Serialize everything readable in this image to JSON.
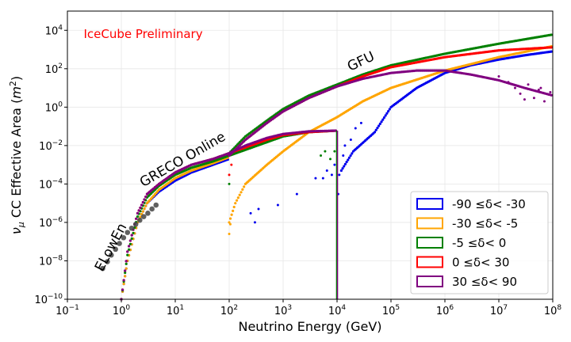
{
  "chart_data": {
    "type": "scatter",
    "xscale": "log",
    "yscale": "log",
    "xlim": [
      0.1,
      100000000
    ],
    "ylim": [
      1e-10,
      100000
    ],
    "xlabel": "Neutrino Energy (GeV)",
    "ylabel_main": "ν",
    "ylabel_sub": "μ",
    "ylabel_text": " CC Effective Area (",
    "ylabel_unit": "m",
    "ylabel_unit_exp": "2",
    "ylabel_close": ")",
    "grid": true,
    "legend_position": "lower-right",
    "x_ticks": [
      {
        "value": 0.1,
        "base": "10",
        "exp": "−1"
      },
      {
        "value": 1,
        "base": "10",
        "exp": "0"
      },
      {
        "value": 10,
        "base": "10",
        "exp": "1"
      },
      {
        "value": 100,
        "base": "10",
        "exp": "2"
      },
      {
        "value": 1000,
        "base": "10",
        "exp": "3"
      },
      {
        "value": 10000,
        "base": "10",
        "exp": "4"
      },
      {
        "value": 100000,
        "base": "10",
        "exp": "5"
      },
      {
        "value": 1000000,
        "base": "10",
        "exp": "6"
      },
      {
        "value": 10000000,
        "base": "10",
        "exp": "7"
      },
      {
        "value": 100000000,
        "base": "10",
        "exp": "8"
      }
    ],
    "y_ticks": [
      {
        "value": 1e-10,
        "base": "10",
        "exp": "−10"
      },
      {
        "value": 1e-08,
        "base": "10",
        "exp": "−8"
      },
      {
        "value": 1e-06,
        "base": "10",
        "exp": "−6"
      },
      {
        "value": 0.0001,
        "base": "10",
        "exp": "−4"
      },
      {
        "value": 0.01,
        "base": "10",
        "exp": "−2"
      },
      {
        "value": 1,
        "base": "10",
        "exp": "0"
      },
      {
        "value": 100,
        "base": "10",
        "exp": "2"
      },
      {
        "value": 10000,
        "base": "10",
        "exp": "4"
      }
    ],
    "annotations": [
      {
        "text": "IceCube Preliminary",
        "x": 0.2,
        "y": 4000,
        "angle": 0,
        "color": "#ff0000",
        "size": 15,
        "anchor": "start"
      },
      {
        "text": "GFU",
        "x": 30000,
        "y": 150,
        "angle": -25,
        "color": "#000000",
        "size": 17,
        "anchor": "middle"
      },
      {
        "text": "GRECO Online",
        "x": 15,
        "y": 0.0012,
        "angle": -30,
        "color": "#000000",
        "size": 17,
        "anchor": "middle"
      },
      {
        "text": "ELowEn",
        "x": 0.75,
        "y": 4e-08,
        "angle": -62,
        "color": "#000000",
        "size": 17,
        "anchor": "middle"
      }
    ],
    "elowen_points": {
      "color": "#444444",
      "x": [
        0.45,
        0.55,
        0.65,
        0.78,
        0.92,
        1.1,
        1.3,
        1.55,
        1.85,
        2.2,
        2.6,
        3.1,
        3.7,
        4.4
      ],
      "y": [
        4e-09,
        9e-09,
        2e-08,
        4e-08,
        8e-08,
        1.6e-07,
        3e-07,
        5e-07,
        8e-07,
        1.3e-06,
        2e-06,
        3e-06,
        5e-06,
        8e-06
      ]
    },
    "series": [
      {
        "name": "-90 ≤δ< -30",
        "legend": {
          "a": "-90",
          "b": "-30"
        },
        "color": "#0000ee",
        "segments": [
          {
            "x": [
              1,
              1.3,
              2,
              3,
              5,
              10,
              20,
              50,
              100
            ],
            "y": [
              1e-10,
              1e-08,
              1e-06,
              1e-05,
              4e-05,
              0.00015,
              0.0004,
              0.001,
              0.002
            ]
          },
          {
            "x": [
              12000,
              20000,
              50000,
              100000,
              300000,
              1000000,
              3000000,
              10000000,
              30000000,
              100000000
            ],
            "y": [
              0.0005,
              0.005,
              0.05,
              1,
              10,
              60,
              150,
              300,
              500,
              800
            ]
          }
        ],
        "scatter": {
          "x": [
            250,
            300,
            350,
            800,
            1800,
            4000,
            5500,
            6500,
            8000,
            9000,
            10500,
            11000,
            13000,
            14000,
            18000,
            22000,
            28000
          ],
          "y": [
            3e-06,
            1e-06,
            5e-06,
            8e-06,
            3e-05,
            0.0002,
            0.0002,
            0.0005,
            0.0003,
            0.001,
            3e-05,
            0.0003,
            0.003,
            0.01,
            0.02,
            0.08,
            0.15
          ]
        }
      },
      {
        "name": "-30 ≤δ< -5",
        "legend": {
          "a": "-30",
          "b": "-5"
        },
        "color": "#ffa500",
        "segments": [
          {
            "x": [
              1,
              1.3,
              2,
              3,
              5,
              10,
              20,
              50,
              100
            ],
            "y": [
              1e-10,
              1e-08,
              1e-06,
              1e-05,
              5e-05,
              0.0002,
              0.0005,
              0.0012,
              0.0025
            ]
          },
          {
            "x": [
              100,
              130,
              200,
              500,
              1000,
              3000,
              10000,
              30000,
              100000,
              1000000,
              10000000,
              100000000
            ],
            "y": [
              1e-06,
              1e-05,
              0.0001,
              0.001,
              0.005,
              0.05,
              0.3,
              2,
              10,
              80,
              400,
              1500
            ]
          }
        ],
        "scatter": {
          "x": [
            100,
            105
          ],
          "y": [
            2.5e-07,
            8e-07
          ]
        }
      },
      {
        "name": "-5 ≤δ< 0",
        "legend": {
          "a": "-5",
          "b": "0"
        },
        "color": "#008000",
        "segments": [
          {
            "x": [
              1,
              1.3,
              2,
              3,
              5,
              10,
              20,
              50,
              100,
              200,
              500,
              1000,
              3000,
              10000
            ],
            "y": [
              1e-10,
              2e-08,
              2e-06,
              2e-05,
              8e-05,
              0.0003,
              0.0007,
              0.0015,
              0.003,
              0.006,
              0.015,
              0.03,
              0.05,
              0.06
            ]
          },
          {
            "x": [
              100,
              200,
              500,
              1000,
              3000,
              10000,
              30000,
              100000,
              1000000,
              10000000,
              100000000
            ],
            "y": [
              0.004,
              0.03,
              0.2,
              0.8,
              4,
              15,
              50,
              150,
              600,
              2000,
              6000
            ]
          }
        ],
        "scatter": {
          "x": [
            100,
            5000,
            6000,
            7500,
            9000
          ],
          "y": [
            0.0001,
            0.003,
            0.005,
            0.002,
            0.005
          ]
        }
      },
      {
        "name": "0 ≤δ< 30",
        "legend": {
          "a": "0",
          "b": "30"
        },
        "color": "#ff0000",
        "segments": [
          {
            "x": [
              1,
              1.3,
              2,
              3,
              5,
              10,
              20,
              50,
              100,
              200,
              500,
              1000,
              3000,
              10000
            ],
            "y": [
              1e-10,
              3e-08,
              3e-06,
              3e-05,
              0.0001,
              0.0004,
              0.001,
              0.002,
              0.004,
              0.008,
              0.02,
              0.035,
              0.05,
              0.06
            ]
          },
          {
            "x": [
              100,
              200,
              500,
              1000,
              3000,
              10000,
              30000,
              100000,
              1000000,
              10000000,
              100000000
            ],
            "y": [
              0.003,
              0.02,
              0.15,
              0.6,
              3,
              12,
              40,
              120,
              400,
              900,
              1300
            ]
          }
        ],
        "scatter": {
          "x": [
            100,
            110
          ],
          "y": [
            0.0003,
            0.001
          ]
        }
      },
      {
        "name": "30 ≤δ< 90",
        "legend": {
          "a": "30",
          "b": "90"
        },
        "color": "#800080",
        "segments": [
          {
            "x": [
              1,
              1.3,
              2,
              3,
              5,
              10,
              20,
              50,
              100,
              200,
              500,
              1000,
              3000,
              10000
            ],
            "y": [
              1e-10,
              3e-08,
              3e-06,
              3e-05,
              0.0001,
              0.0004,
              0.001,
              0.002,
              0.004,
              0.01,
              0.025,
              0.04,
              0.055,
              0.06
            ]
          },
          {
            "x": [
              100,
              200,
              500,
              1000,
              3000,
              10000,
              30000,
              100000,
              300000,
              1000000,
              3000000,
              10000000,
              30000000,
              100000000
            ],
            "y": [
              0.003,
              0.02,
              0.15,
              0.6,
              3,
              12,
              30,
              60,
              80,
              80,
              50,
              25,
              10,
              4
            ]
          }
        ],
        "scatter": {
          "x": [
            10000000,
            15000000,
            20000000,
            25000000,
            35000000,
            45000000,
            55000000,
            70000000,
            90000000,
            30000000,
            60000000
          ],
          "y": [
            40,
            20,
            10,
            5,
            15,
            3,
            8,
            2,
            6,
            2.5,
            10
          ]
        }
      }
    ]
  }
}
